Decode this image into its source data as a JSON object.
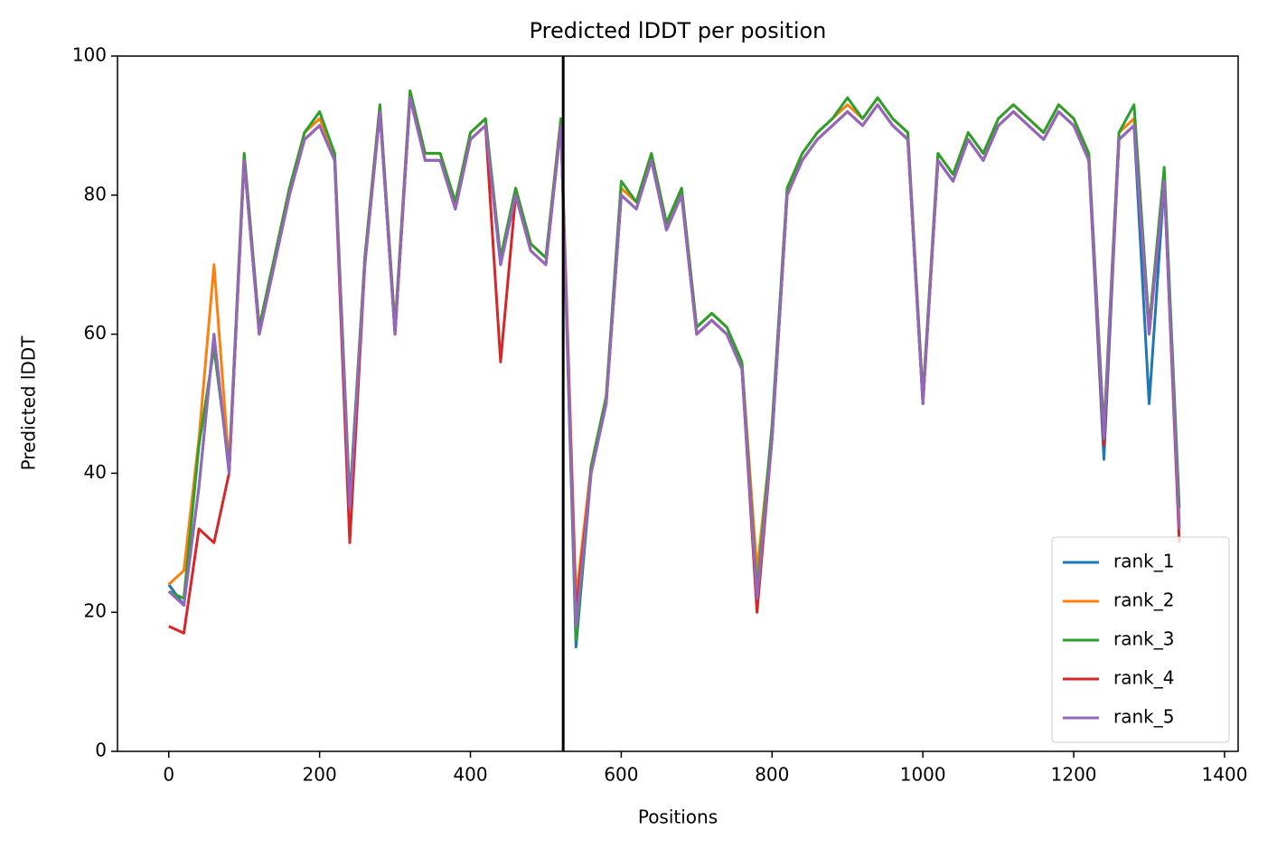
{
  "chart_data": {
    "type": "line",
    "title": "Predicted lDDT per position",
    "xlabel": "Positions",
    "ylabel": "Predicted lDDT",
    "x": [
      0,
      20,
      40,
      60,
      80,
      100,
      120,
      140,
      160,
      180,
      200,
      220,
      240,
      260,
      280,
      300,
      320,
      340,
      360,
      380,
      400,
      420,
      440,
      460,
      480,
      500,
      520,
      540,
      560,
      580,
      600,
      620,
      640,
      660,
      680,
      700,
      720,
      740,
      760,
      780,
      800,
      820,
      840,
      860,
      880,
      900,
      920,
      940,
      960,
      980,
      1000,
      1020,
      1040,
      1060,
      1080,
      1100,
      1120,
      1140,
      1160,
      1180,
      1200,
      1220,
      1240,
      1260,
      1280,
      1300,
      1320,
      1340
    ],
    "series": [
      {
        "name": "rank_1",
        "color": "#1f77b4",
        "values": [
          24,
          21,
          38,
          60,
          40,
          85,
          60,
          70,
          80,
          88,
          90,
          85,
          35,
          70,
          92,
          60,
          94,
          85,
          85,
          78,
          88,
          90,
          70,
          80,
          72,
          70,
          90,
          15,
          40,
          50,
          80,
          78,
          85,
          75,
          80,
          60,
          62,
          60,
          55,
          22,
          45,
          80,
          85,
          88,
          90,
          92,
          90,
          93,
          90,
          88,
          50,
          85,
          82,
          88,
          85,
          90,
          92,
          90,
          88,
          92,
          90,
          85,
          42,
          88,
          90,
          50,
          82,
          32
        ]
      },
      {
        "name": "rank_2",
        "color": "#ff7f0e",
        "values": [
          24,
          26,
          45,
          70,
          41,
          86,
          61,
          71,
          81,
          89,
          91,
          86,
          36,
          71,
          93,
          61,
          95,
          86,
          86,
          79,
          89,
          91,
          71,
          81,
          73,
          71,
          91,
          22,
          41,
          51,
          81,
          79,
          86,
          76,
          81,
          61,
          63,
          61,
          56,
          26,
          46,
          81,
          86,
          89,
          91,
          93,
          91,
          94,
          91,
          89,
          51,
          86,
          83,
          89,
          86,
          91,
          93,
          91,
          89,
          93,
          91,
          86,
          46,
          89,
          91,
          61,
          83,
          33
        ]
      },
      {
        "name": "rank_3",
        "color": "#2ca02c",
        "values": [
          23,
          22,
          44,
          58,
          41,
          86,
          61,
          71,
          81,
          89,
          92,
          86,
          36,
          71,
          93,
          61,
          95,
          86,
          86,
          79,
          89,
          91,
          71,
          81,
          73,
          71,
          91,
          16,
          41,
          51,
          82,
          79,
          86,
          76,
          81,
          61,
          63,
          61,
          56,
          23,
          47,
          81,
          86,
          89,
          91,
          94,
          91,
          94,
          91,
          89,
          51,
          86,
          83,
          89,
          86,
          91,
          93,
          91,
          89,
          93,
          91,
          86,
          46,
          89,
          93,
          61,
          84,
          35
        ]
      },
      {
        "name": "rank_4",
        "color": "#d62728",
        "values": [
          18,
          17,
          32,
          30,
          40,
          85,
          60,
          70,
          80,
          88,
          90,
          85,
          30,
          70,
          92,
          60,
          94,
          85,
          85,
          78,
          88,
          90,
          56,
          80,
          72,
          70,
          90,
          20,
          40,
          50,
          80,
          78,
          85,
          75,
          80,
          60,
          62,
          60,
          55,
          20,
          45,
          80,
          85,
          88,
          90,
          92,
          90,
          93,
          90,
          88,
          50,
          85,
          82,
          88,
          85,
          90,
          92,
          90,
          88,
          92,
          90,
          85,
          44,
          88,
          90,
          60,
          82,
          30
        ]
      },
      {
        "name": "rank_5",
        "color": "#9467bd",
        "values": [
          23,
          21,
          38,
          60,
          40,
          85,
          60,
          70,
          80,
          88,
          90,
          85,
          35,
          70,
          92,
          60,
          94,
          85,
          85,
          78,
          88,
          90,
          70,
          80,
          72,
          70,
          90,
          18,
          40,
          50,
          80,
          78,
          85,
          75,
          80,
          60,
          62,
          60,
          55,
          22,
          45,
          80,
          85,
          88,
          90,
          92,
          90,
          93,
          90,
          88,
          50,
          85,
          82,
          88,
          85,
          90,
          92,
          90,
          88,
          92,
          90,
          85,
          45,
          88,
          90,
          60,
          82,
          32
        ]
      }
    ],
    "vline": 523,
    "xlim": [
      -68,
      1418
    ],
    "ylim": [
      0,
      100
    ],
    "xticks": [
      0,
      200,
      400,
      600,
      800,
      1000,
      1200,
      1400
    ],
    "yticks": [
      0,
      20,
      40,
      60,
      80,
      100
    ],
    "legend": "lower right"
  }
}
